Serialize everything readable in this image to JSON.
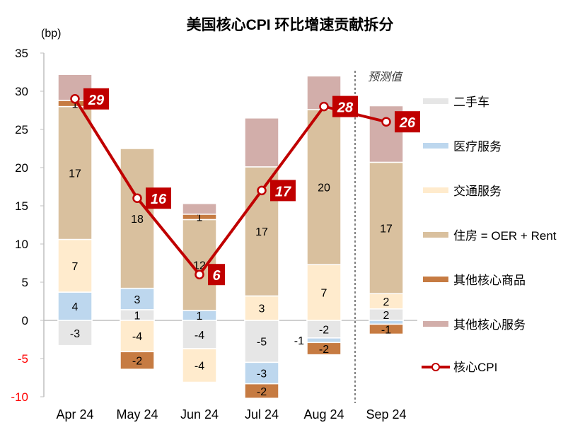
{
  "chart_data": {
    "type": "bar",
    "stacked": true,
    "title": "美国核心CPI 环比增速贡献拆分",
    "ylabel": "(bp)",
    "ylim": [
      -10,
      35
    ],
    "yticks": [
      -10,
      -5,
      0,
      5,
      10,
      15,
      20,
      25,
      30,
      35
    ],
    "categories": [
      "Apr 24",
      "May 24",
      "Jun 24",
      "Jul 24",
      "Aug 24",
      "Sep 24"
    ],
    "forecast_annotation": "预测值",
    "forecast_from": "Sep 24",
    "legend_position": "right",
    "series": [
      {
        "name": "二手车",
        "color": "#e6e6e6",
        "values": [
          -3.3,
          1.4,
          -3.7,
          -5.5,
          -2.3,
          1.5
        ],
        "labels": [
          "-3",
          "1",
          "-4",
          "-5",
          "-2",
          "2"
        ]
      },
      {
        "name": "医疗服务",
        "color": "#bdd7ee",
        "values": [
          3.7,
          2.8,
          1.3,
          -2.8,
          -0.6,
          -0.5
        ],
        "labels": [
          "4",
          "3",
          "1",
          "-3",
          "-1",
          null
        ]
      },
      {
        "name": "交通服务",
        "color": "#ffebcd",
        "values": [
          6.9,
          -4.1,
          -4.4,
          3.2,
          7.3,
          2.0
        ],
        "labels": [
          "7",
          "-4",
          "-4",
          "3",
          "7",
          "2"
        ]
      },
      {
        "name": "住房 = OER + Rent",
        "color": "#d9c09e",
        "values": [
          17.4,
          18.3,
          11.9,
          16.9,
          20.3,
          17.2
        ],
        "labels": [
          "17",
          "18",
          "12",
          "17",
          "20",
          "17"
        ]
      },
      {
        "name": "其他核心商品",
        "color": "#c67b42",
        "values": [
          0.8,
          -2.3,
          0.7,
          -1.9,
          -1.6,
          -1.3
        ],
        "labels": [
          "1",
          "-2",
          "1",
          "-2",
          "-2",
          "-1"
        ]
      },
      {
        "name": "其他核心服务",
        "color": "#d2aeaa",
        "values": [
          3.4,
          0,
          1.4,
          6.4,
          4.4,
          7.4
        ],
        "labels": [
          null,
          null,
          null,
          null,
          null,
          null
        ]
      }
    ],
    "line": {
      "name": "核心CPI",
      "color": "#c00000",
      "values": [
        29,
        16,
        6,
        17,
        28,
        26
      ],
      "labels": [
        "29",
        "16",
        "6",
        "17",
        "28",
        "26"
      ]
    }
  }
}
